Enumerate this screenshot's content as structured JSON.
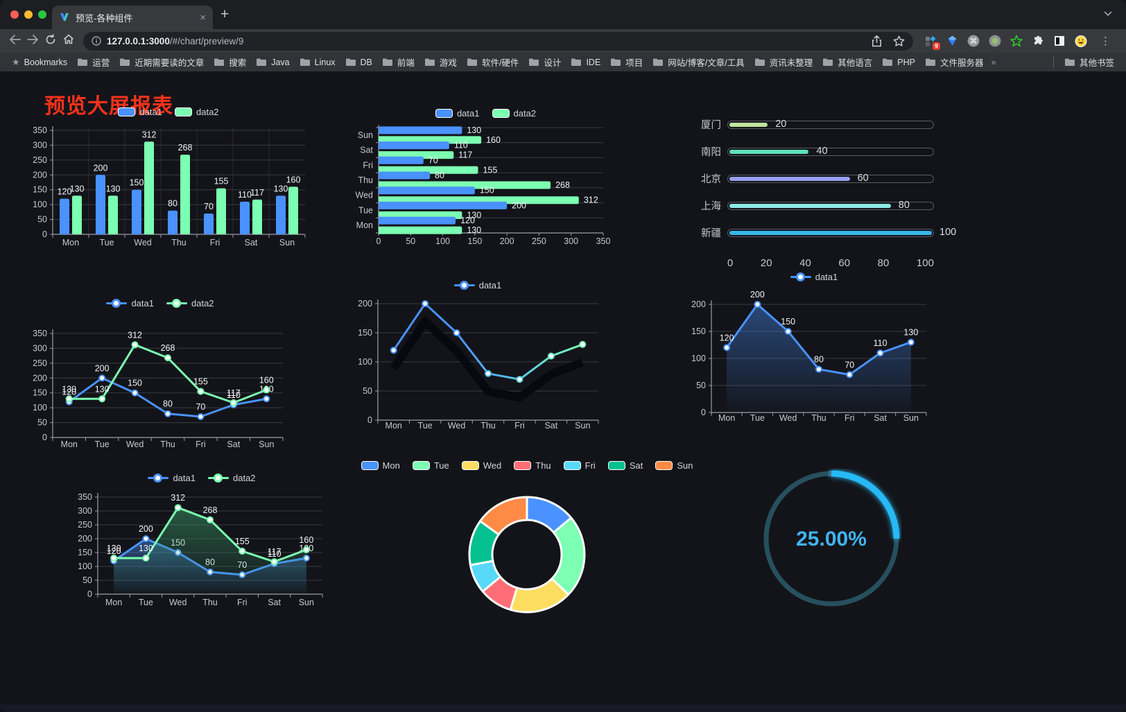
{
  "browser": {
    "tab_title": "预览-各种组件",
    "url_host": "127.0.0.1:3000",
    "url_path": "/#/chart/preview/9",
    "new_tab": "+",
    "close_tab": "×",
    "bookmarks_label": "Bookmarks",
    "bookmarks": [
      "运营",
      "近期需要读的文章",
      "搜索",
      "Java",
      "Linux",
      "DB",
      "前端",
      "游戏",
      "软件/硬件",
      "设计",
      "IDE",
      "项目",
      "网站/博客/文章/工具",
      "资讯未整理",
      "其他语言",
      "PHP",
      "文件服务器"
    ],
    "bookmarks_overflow": "»",
    "other_bookmarks": "其他书签",
    "extension_badge": "9",
    "kebab": "⋮"
  },
  "page": {
    "title": "预览大屏报表",
    "title_color": "#f7321b",
    "background": "#131419"
  },
  "chart_data": [
    {
      "id": "bar-vertical",
      "type": "bar",
      "legend_style": "rect",
      "legend_position": "top",
      "categories": [
        "Mon",
        "Tue",
        "Wed",
        "Thu",
        "Fri",
        "Sat",
        "Sun"
      ],
      "series": [
        {
          "name": "data1",
          "color": "#4992ff",
          "values": [
            120,
            200,
            150,
            80,
            70,
            110,
            130
          ]
        },
        {
          "name": "data2",
          "color": "#7cffb2",
          "values": [
            130,
            130,
            312,
            268,
            155,
            117,
            160
          ]
        }
      ],
      "ylim": [
        0,
        350
      ],
      "yticks": [
        0,
        50,
        100,
        150,
        200,
        250,
        300,
        350
      ],
      "grid": true,
      "vsplit": true,
      "labels": true
    },
    {
      "id": "bar-horizontal",
      "type": "hbar",
      "legend_style": "rect",
      "legend_position": "top",
      "categories": [
        "Sun",
        "Sat",
        "Fri",
        "Thu",
        "Wed",
        "Tue",
        "Mon"
      ],
      "series": [
        {
          "name": "data1",
          "color": "#4992ff",
          "values": [
            130,
            110,
            70,
            80,
            150,
            200,
            120
          ]
        },
        {
          "name": "data2",
          "color": "#7cffb2",
          "values": [
            160,
            117,
            155,
            268,
            312,
            130,
            130
          ]
        }
      ],
      "xlim": [
        0,
        350
      ],
      "xticks": [
        0,
        50,
        100,
        150,
        200,
        250,
        300,
        350
      ],
      "grid": true,
      "labels": true
    },
    {
      "id": "progress",
      "type": "progress",
      "rows": [
        {
          "label": "厦门",
          "value": 20,
          "color": "#c0e59c"
        },
        {
          "label": "南阳",
          "value": 40,
          "color": "#5fe0b7"
        },
        {
          "label": "北京",
          "value": 60,
          "color": "#989fee"
        },
        {
          "label": "上海",
          "value": 80,
          "color": "#8ce8e5"
        },
        {
          "label": "新疆",
          "value": 100,
          "color": "#38b6e8"
        }
      ],
      "xlim": [
        0,
        100
      ],
      "xticks": [
        0,
        20,
        40,
        60,
        80,
        100
      ]
    },
    {
      "id": "line-two",
      "type": "line",
      "legend_style": "line",
      "legend_position": "top",
      "categories": [
        "Mon",
        "Tue",
        "Wed",
        "Thu",
        "Fri",
        "Sat",
        "Sun"
      ],
      "series": [
        {
          "name": "data1",
          "color": "#4992ff",
          "values": [
            120,
            200,
            150,
            80,
            70,
            110,
            130
          ]
        },
        {
          "name": "data2",
          "color": "#7cffb2",
          "values": [
            130,
            130,
            312,
            268,
            155,
            117,
            160
          ]
        }
      ],
      "ylim": [
        0,
        350
      ],
      "yticks": [
        0,
        50,
        100,
        150,
        200,
        250,
        300,
        350
      ],
      "grid": true,
      "labels": true
    },
    {
      "id": "line-gradient",
      "type": "line",
      "legend_style": "line",
      "legend_position": "top",
      "categories": [
        "Mon",
        "Tue",
        "Wed",
        "Thu",
        "Fri",
        "Sat",
        "Sun"
      ],
      "series": [
        {
          "name": "data1",
          "color": "#4992ff",
          "values": [
            120,
            200,
            150,
            80,
            70,
            110,
            130
          ],
          "stroke_gradient": [
            "#4992ff",
            "#4992ff",
            "#58c7e8",
            "#7cffb2"
          ],
          "marker_colors": [
            "#4992ff",
            "#4992ff",
            "#4992ff",
            "#53b7ec",
            "#5fcfd8",
            "#6fe9c2",
            "#7cffb2"
          ],
          "shadow": true,
          "labels": false
        }
      ],
      "ylim": [
        0,
        200
      ],
      "yticks": [
        0,
        50,
        100,
        150,
        200
      ],
      "grid": true,
      "labels": false
    },
    {
      "id": "line-area",
      "type": "line",
      "legend_style": "line",
      "legend_position": "top",
      "categories": [
        "Mon",
        "Tue",
        "Wed",
        "Thu",
        "Fri",
        "Sat",
        "Sun"
      ],
      "series": [
        {
          "name": "data1",
          "color": "#4992ff",
          "values": [
            120,
            200,
            150,
            80,
            70,
            110,
            130
          ],
          "area": true,
          "area_opacity": 0.42
        }
      ],
      "ylim": [
        0,
        200
      ],
      "yticks": [
        0,
        50,
        100,
        150,
        200
      ],
      "grid": true,
      "labels": true
    },
    {
      "id": "line-area-two",
      "type": "line",
      "legend_style": "line",
      "legend_position": "top",
      "categories": [
        "Mon",
        "Tue",
        "Wed",
        "Thu",
        "Fri",
        "Sat",
        "Sun"
      ],
      "series": [
        {
          "name": "data1",
          "color": "#4992ff",
          "values": [
            120,
            200,
            150,
            80,
            70,
            110,
            130
          ],
          "area": true,
          "area_opacity": 0.45
        },
        {
          "name": "data2",
          "color": "#7cffb2",
          "values": [
            130,
            130,
            312,
            268,
            155,
            117,
            160
          ],
          "area": true,
          "area_opacity": 0.5,
          "area_color": "#3ca06e"
        }
      ],
      "ylim": [
        0,
        350
      ],
      "yticks": [
        0,
        50,
        100,
        150,
        200,
        250,
        300,
        350
      ],
      "grid": true,
      "labels": true
    },
    {
      "id": "donut",
      "type": "pie",
      "legend_style": "rect",
      "legend_position": "top",
      "inner_ratio": 0.6,
      "slices": [
        {
          "label": "Mon",
          "value": 120,
          "color": "#4992ff"
        },
        {
          "label": "Tue",
          "value": 200,
          "color": "#7cffb2"
        },
        {
          "label": "Wed",
          "value": 150,
          "color": "#fddd60"
        },
        {
          "label": "Thu",
          "value": 80,
          "color": "#ff6e76"
        },
        {
          "label": "Fri",
          "value": 70,
          "color": "#58d9f9"
        },
        {
          "label": "Sat",
          "value": 110,
          "color": "#05c091"
        },
        {
          "label": "Sun",
          "value": 130,
          "color": "#ff8a45"
        }
      ]
    },
    {
      "id": "gauge",
      "type": "gauge",
      "value": 25,
      "max": 100,
      "display": "25.00%",
      "color": "#28b9f5",
      "track_color": "#26505e",
      "text_color": "#40b4f1"
    }
  ]
}
